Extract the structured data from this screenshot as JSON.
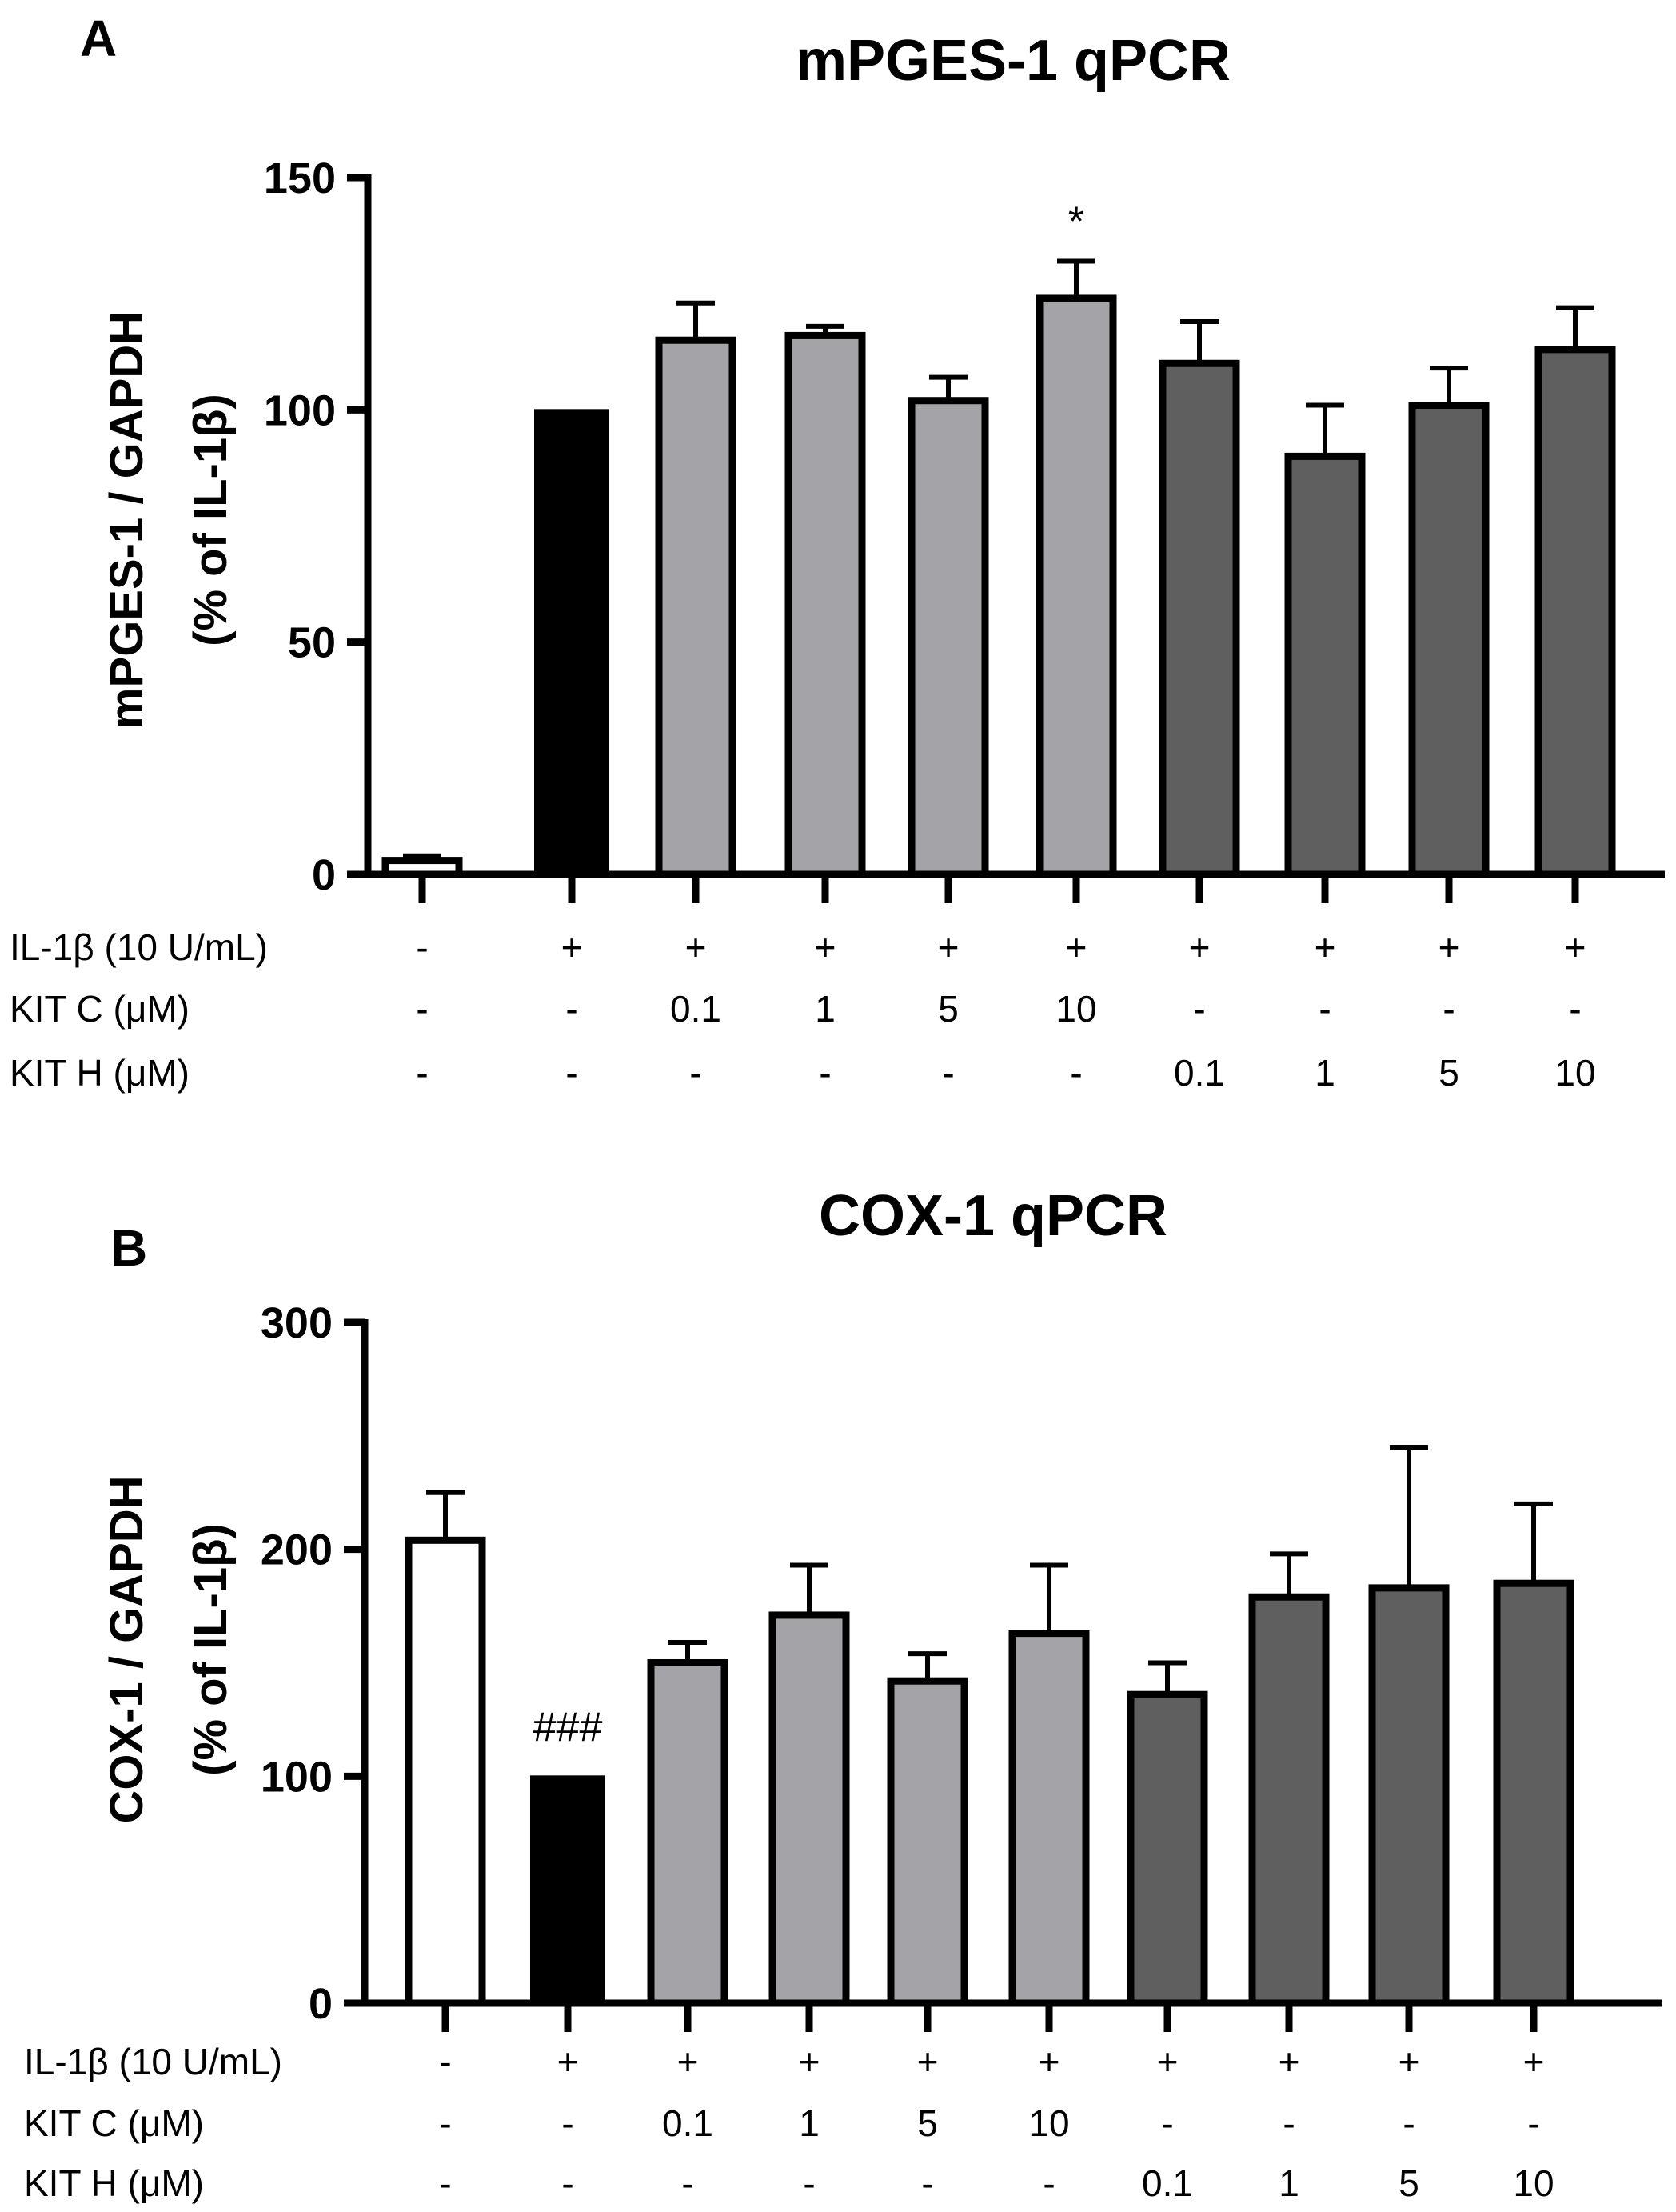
{
  "colors": {
    "control": "#ffffff",
    "il1b": "#000000",
    "kit_c": "#a3a3a8",
    "kit_h": "#5f5f5f",
    "outline": "#000000"
  },
  "treatment_rows": [
    {
      "label": "IL-1β (10 U/mL)",
      "values": [
        "-",
        "+",
        "+",
        "+",
        "+",
        "+",
        "+",
        "+",
        "+",
        "+"
      ]
    },
    {
      "label": "KIT C (μM)",
      "values": [
        "-",
        "-",
        "0.1",
        "1",
        "5",
        "10",
        "-",
        "-",
        "-",
        "-"
      ]
    },
    {
      "label": "KIT H (μM)",
      "values": [
        "-",
        "-",
        "-",
        "-",
        "-",
        "-",
        "0.1",
        "1",
        "5",
        "10"
      ]
    }
  ],
  "chart_data": [
    {
      "panel": "A",
      "type": "bar",
      "title": "mPGES-1 qPCR",
      "ylabel_line1": "mPGES-1 / GAPDH",
      "ylabel_line2": "(% of IL-1β)",
      "xlabel": "",
      "ylim": [
        0,
        150
      ],
      "yticks": [
        0,
        50,
        100,
        150
      ],
      "ytick_labels": [
        "0",
        "50",
        "100",
        "150"
      ],
      "categories": [
        "Control",
        "IL-1β",
        "IL-1β + KIT C 0.1 μM",
        "IL-1β + KIT C 1 μM",
        "IL-1β + KIT C 5 μM",
        "IL-1β + KIT C 10 μM",
        "IL-1β + KIT H 0.1 μM",
        "IL-1β + KIT H 1 μM",
        "IL-1β + KIT H 5 μM",
        "IL-1β + KIT H 10 μM"
      ],
      "groups": [
        "control",
        "il1b",
        "kit_c",
        "kit_c",
        "kit_c",
        "kit_c",
        "kit_h",
        "kit_h",
        "kit_h",
        "kit_h"
      ],
      "values": [
        3,
        100,
        115,
        116,
        102,
        124,
        110,
        90,
        101,
        113
      ],
      "errors": [
        1,
        0,
        8,
        2,
        5,
        8,
        9,
        11,
        8,
        9
      ],
      "annotations": [
        {
          "index": 5,
          "text": "*"
        }
      ]
    },
    {
      "panel": "B",
      "type": "bar",
      "title": "COX-1 qPCR",
      "ylabel_line1": "COX-1 / GAPDH",
      "ylabel_line2": "(% of IL-1β)",
      "xlabel": "",
      "ylim": [
        0,
        300
      ],
      "yticks": [
        0,
        100,
        200,
        300
      ],
      "ytick_labels": [
        "0",
        "100",
        "200",
        "300"
      ],
      "categories": [
        "Control",
        "IL-1β",
        "IL-1β + KIT C 0.1 μM",
        "IL-1β + KIT C 1 μM",
        "IL-1β + KIT C 5 μM",
        "IL-1β + KIT C 10 μM",
        "IL-1β + KIT H 0.1 μM",
        "IL-1β + KIT H 1 μM",
        "IL-1β + KIT H 5 μM",
        "IL-1β + KIT H 10 μM"
      ],
      "groups": [
        "control",
        "il1b",
        "kit_c",
        "kit_c",
        "kit_c",
        "kit_c",
        "kit_h",
        "kit_h",
        "kit_h",
        "kit_h"
      ],
      "values": [
        204,
        100,
        150,
        171,
        142,
        163,
        136,
        179,
        183,
        185
      ],
      "errors": [
        21,
        0,
        9,
        22,
        12,
        30,
        14,
        19,
        62,
        35
      ],
      "annotations": [
        {
          "index": 1,
          "text": "###"
        }
      ]
    }
  ]
}
